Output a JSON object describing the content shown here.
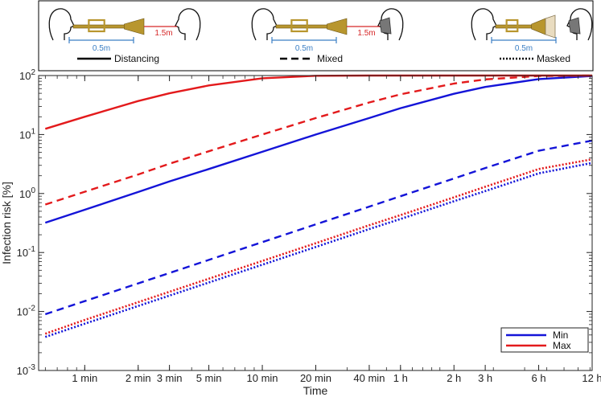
{
  "chart_data": {
    "type": "line",
    "title": "",
    "xlabel": "Time",
    "ylabel": "Infection risk [%]",
    "x_scale": "log",
    "y_scale": "log",
    "x_unit": "minutes",
    "xlim": [
      0.55,
      720
    ],
    "ylim": [
      0.001,
      100
    ],
    "x": [
      0.6,
      1,
      2,
      3,
      5,
      10,
      20,
      40,
      60,
      120,
      180,
      360,
      720
    ],
    "x_ticks": [
      {
        "value": 1,
        "label": "1 min"
      },
      {
        "value": 2,
        "label": "2 min"
      },
      {
        "value": 3,
        "label": "3 min"
      },
      {
        "value": 5,
        "label": "5 min"
      },
      {
        "value": 10,
        "label": "10 min"
      },
      {
        "value": 20,
        "label": "20 min"
      },
      {
        "value": 40,
        "label": "40 min"
      },
      {
        "value": 60,
        "label": "1 h"
      },
      {
        "value": 120,
        "label": "2 h"
      },
      {
        "value": 180,
        "label": "3 h"
      },
      {
        "value": 360,
        "label": "6 h"
      },
      {
        "value": 720,
        "label": "12 h"
      }
    ],
    "y_ticks": [
      {
        "value": 0.001,
        "base": "10",
        "exp": "-3"
      },
      {
        "value": 0.01,
        "base": "10",
        "exp": "-2"
      },
      {
        "value": 0.1,
        "base": "10",
        "exp": "-1"
      },
      {
        "value": 1,
        "base": "10",
        "exp": "0"
      },
      {
        "value": 10,
        "base": "10",
        "exp": "1"
      },
      {
        "value": 100,
        "base": "10",
        "exp": "2"
      }
    ],
    "grid": false,
    "legend_position": "bottom-right",
    "series": [
      {
        "name": "Min",
        "scenario": "Distancing",
        "color": "#1414d8",
        "dash": "solid",
        "values": [
          0.32,
          0.53,
          1.06,
          1.6,
          2.6,
          5.1,
          10,
          19,
          28,
          49,
          64,
          87,
          98
        ]
      },
      {
        "name": "Max",
        "scenario": "Distancing",
        "color": "#e31a1c",
        "dash": "solid",
        "values": [
          12.5,
          20,
          37,
          50,
          68,
          90,
          99,
          100,
          100,
          100,
          100,
          100,
          100
        ]
      },
      {
        "name": "Min",
        "scenario": "Mixed",
        "color": "#1414d8",
        "dash": "dashed",
        "values": [
          0.009,
          0.015,
          0.03,
          0.045,
          0.075,
          0.15,
          0.3,
          0.6,
          0.9,
          1.8,
          2.7,
          5.3,
          7.9
        ]
      },
      {
        "name": "Max",
        "scenario": "Mixed",
        "color": "#e31a1c",
        "dash": "dashed",
        "values": [
          0.65,
          1.07,
          2.1,
          3.2,
          5.2,
          10,
          19,
          35,
          48,
          73,
          86,
          98,
          100
        ]
      },
      {
        "name": "Min",
        "scenario": "Masked",
        "color": "#1414d8",
        "dash": "dotted",
        "values": [
          0.0037,
          0.0062,
          0.0124,
          0.0186,
          0.031,
          0.062,
          0.124,
          0.25,
          0.37,
          0.74,
          1.1,
          2.2,
          3.3
        ]
      },
      {
        "name": "Max",
        "scenario": "Masked",
        "color": "#e31a1c",
        "dash": "dotted",
        "values": [
          0.0042,
          0.0072,
          0.0144,
          0.0216,
          0.036,
          0.072,
          0.144,
          0.29,
          0.43,
          0.86,
          1.3,
          2.6,
          3.8
        ]
      }
    ]
  },
  "legend": {
    "entries": [
      {
        "label": "Min",
        "color": "#1414d8"
      },
      {
        "label": "Max",
        "color": "#e31a1c"
      }
    ]
  },
  "scenario_panel": {
    "scenes": [
      {
        "label": "Distancing",
        "line_style": "solid",
        "distance_near": "0.5m",
        "distance_far": "1.5m",
        "mask": false,
        "bell_cover": false
      },
      {
        "label": "Mixed",
        "line_style": "dashed",
        "distance_near": "0.5m",
        "distance_far": "1.5m",
        "mask": true,
        "bell_cover": false
      },
      {
        "label": "Masked",
        "line_style": "dotted",
        "distance_near": "0.5m",
        "distance_far": "",
        "mask": true,
        "bell_cover": true
      }
    ],
    "colors": {
      "near": "#3b7fc4",
      "far": "#d62728",
      "trumpet": "#b8962e",
      "mask": "#777777"
    }
  }
}
